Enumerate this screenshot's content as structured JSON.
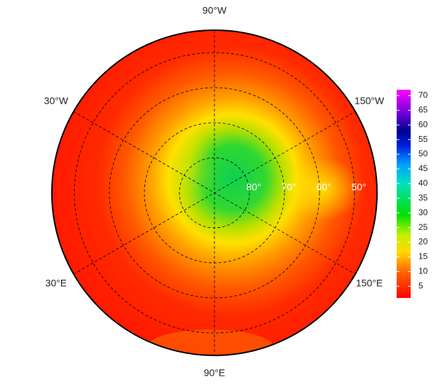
{
  "map": {
    "longitude_labels": [
      "90°W",
      "30°W",
      "150°W",
      "30°E",
      "150°E",
      "90°E"
    ],
    "latitude_labels": [
      "80°",
      "70°",
      "60°",
      "50°"
    ],
    "colorbar": {
      "lim": [
        1,
        72
      ],
      "ticks": [
        5,
        10,
        15,
        20,
        25,
        30,
        35,
        40,
        45,
        50,
        55,
        60,
        65,
        70
      ]
    }
  }
}
